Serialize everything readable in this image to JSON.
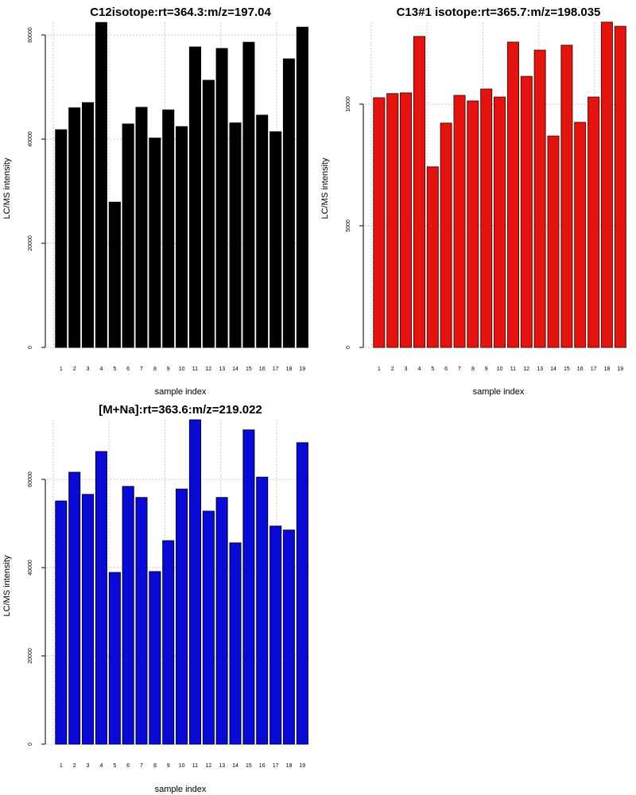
{
  "chart_data": [
    {
      "type": "bar",
      "title": "C12isotope:rt=364.3:m/z=197.04",
      "xlabel": "sample index",
      "ylabel": "LC/MS intensity",
      "categories": [
        "1",
        "2",
        "3",
        "4",
        "5",
        "6",
        "7",
        "8",
        "9",
        "10",
        "11",
        "12",
        "13",
        "14",
        "15",
        "16",
        "17",
        "18",
        "19"
      ],
      "values": [
        41800,
        46000,
        47000,
        62400,
        27900,
        42900,
        46100,
        40200,
        45600,
        42400,
        57700,
        51300,
        57400,
        43100,
        58600,
        44600,
        41400,
        55400,
        61500
      ],
      "yticks": [
        0,
        20000,
        40000,
        60000
      ],
      "ytick_labels": [
        "0",
        "20000",
        "40000",
        "60000"
      ],
      "ylim": [
        0,
        62400
      ],
      "bar_color": "#000000",
      "bar_border": "#000000",
      "grid": true
    },
    {
      "type": "bar",
      "title": "C13#1 isotope:rt=365.7:m/z=198.035",
      "xlabel": "sample index",
      "ylabel": "LC/MS intensity",
      "categories": [
        "1",
        "2",
        "3",
        "4",
        "5",
        "6",
        "7",
        "8",
        "9",
        "10",
        "11",
        "12",
        "13",
        "14",
        "15",
        "16",
        "17",
        "18",
        "19"
      ],
      "values": [
        10260,
        10430,
        10460,
        12780,
        7420,
        9220,
        10360,
        10130,
        10620,
        10290,
        12550,
        11140,
        12220,
        8690,
        12420,
        9250,
        10290,
        13370,
        13200
      ],
      "yticks": [
        0,
        5000,
        10000
      ],
      "ytick_labels": [
        "0",
        "5000",
        "10000"
      ],
      "ylim": [
        0,
        13370
      ],
      "bar_color": "#e3130f",
      "bar_border": "#5a0a08",
      "grid": true
    },
    {
      "type": "bar",
      "title": "[M+Na]:rt=363.6:m/z=219.022",
      "xlabel": "sample index",
      "ylabel": "LC/MS intensity",
      "categories": [
        "1",
        "2",
        "3",
        "4",
        "5",
        "6",
        "7",
        "8",
        "9",
        "10",
        "11",
        "12",
        "13",
        "14",
        "15",
        "16",
        "17",
        "18",
        "19"
      ],
      "values": [
        55100,
        61600,
        56600,
        66300,
        38900,
        58400,
        55900,
        39100,
        46100,
        57800,
        73500,
        52800,
        55900,
        45600,
        71200,
        60500,
        49400,
        48500,
        68300
      ],
      "yticks": [
        0,
        20000,
        40000,
        60000
      ],
      "ytick_labels": [
        "0",
        "20000",
        "40000",
        "60000"
      ],
      "ylim": [
        0,
        73500
      ],
      "bar_color": "#0a0ad6",
      "bar_border": "#000033",
      "grid": true
    }
  ]
}
